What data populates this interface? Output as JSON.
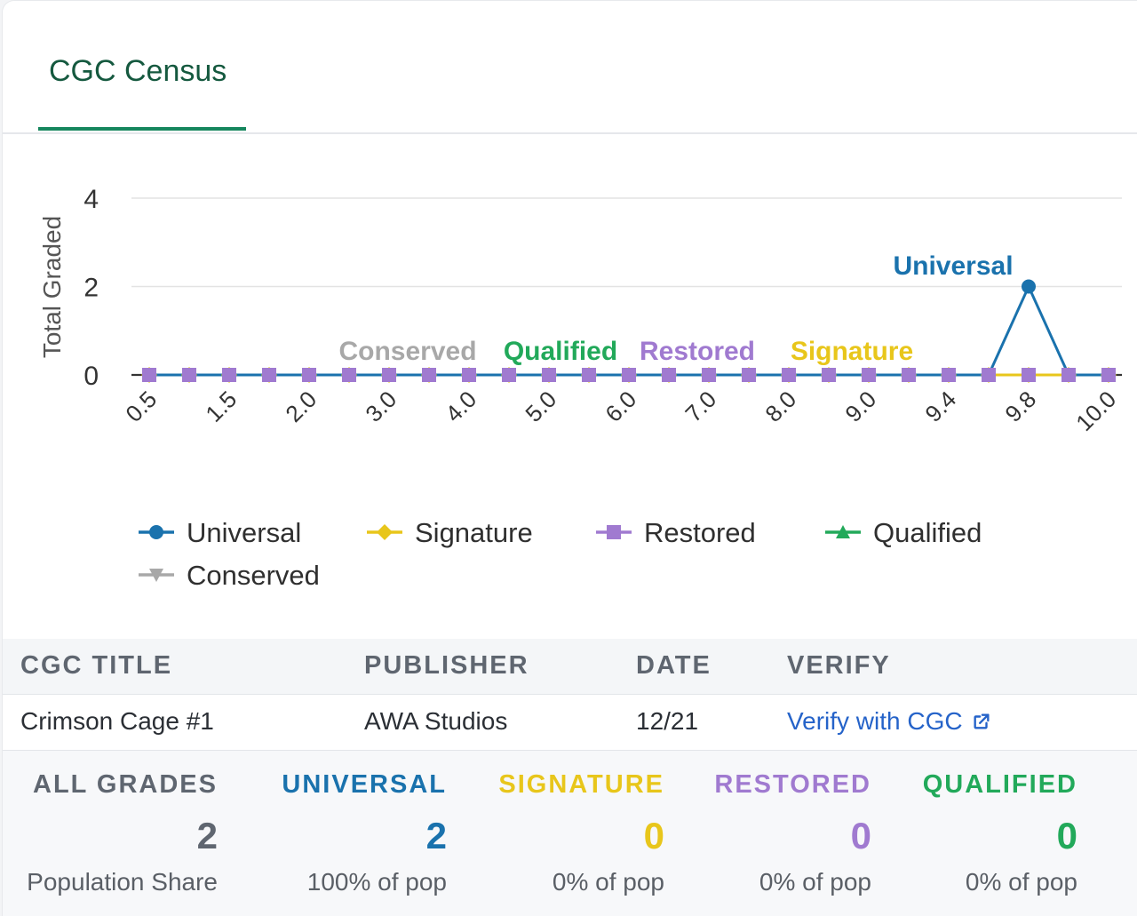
{
  "tabs": [
    {
      "label": "CGC Census"
    }
  ],
  "colors": {
    "universal": "#1a72ad",
    "signature": "#e8c61b",
    "restored": "#a07ad0",
    "qualified": "#22a95a",
    "conserved": "#a8a8a8",
    "neutral": "#5f6670"
  },
  "chart_data": {
    "type": "line",
    "ylabel": "Total Graded",
    "ylim": [
      0,
      4
    ],
    "yticks": [
      0,
      2,
      4
    ],
    "x_grades": [
      "0.5",
      "1.0",
      "1.5",
      "1.8",
      "2.0",
      "2.5",
      "3.0",
      "3.5",
      "4.0",
      "4.5",
      "5.0",
      "5.5",
      "6.0",
      "6.5",
      "7.0",
      "7.5",
      "8.0",
      "8.5",
      "9.0",
      "9.2",
      "9.4",
      "9.6",
      "9.8",
      "9.9",
      "10.0"
    ],
    "xtick_labels": [
      "0.5",
      "1.5",
      "2.0",
      "3.0",
      "4.0",
      "5.0",
      "6.0",
      "7.0",
      "8.0",
      "9.0",
      "9.4",
      "9.8",
      "10.0"
    ],
    "series": [
      {
        "name": "Universal",
        "color": "#1a72ad",
        "marker": "circle",
        "values": [
          0,
          0,
          0,
          0,
          0,
          0,
          0,
          0,
          0,
          0,
          0,
          0,
          0,
          0,
          0,
          0,
          0,
          0,
          0,
          0,
          0,
          0,
          2,
          0,
          0
        ]
      },
      {
        "name": "Signature",
        "color": "#e8c61b",
        "marker": "diamond",
        "values": [
          0,
          0,
          0,
          0,
          0,
          0,
          0,
          0,
          0,
          0,
          0,
          0,
          0,
          0,
          0,
          0,
          0,
          0,
          0,
          0,
          0,
          0,
          0,
          0,
          0
        ]
      },
      {
        "name": "Restored",
        "color": "#a07ad0",
        "marker": "square",
        "values": [
          0,
          0,
          0,
          0,
          0,
          0,
          0,
          0,
          0,
          0,
          0,
          0,
          0,
          0,
          0,
          0,
          0,
          0,
          0,
          0,
          0,
          0,
          0,
          0,
          0
        ]
      },
      {
        "name": "Qualified",
        "color": "#22a95a",
        "marker": "triangle",
        "values": [
          0,
          0,
          0,
          0,
          0,
          0,
          0,
          0,
          0,
          0,
          0,
          0,
          0,
          0,
          0,
          0,
          0,
          0,
          0,
          0,
          0,
          0,
          0,
          0,
          0
        ]
      },
      {
        "name": "Conserved",
        "color": "#a8a8a8",
        "marker": "triangle-down",
        "values": [
          0,
          0,
          0,
          0,
          0,
          0,
          0,
          0,
          0,
          0,
          0,
          0,
          0,
          0,
          0,
          0,
          0,
          0,
          0,
          0,
          0,
          0,
          0,
          0,
          0
        ]
      }
    ],
    "annotations": [
      {
        "text": "Conserved",
        "color": "#a8a8a8"
      },
      {
        "text": "Qualified",
        "color": "#22a95a"
      },
      {
        "text": "Restored",
        "color": "#a07ad0"
      },
      {
        "text": "Signature",
        "color": "#e8c61b"
      },
      {
        "text": "Universal",
        "color": "#1a72ad"
      }
    ],
    "legend": [
      "Universal",
      "Signature",
      "Restored",
      "Qualified",
      "Conserved"
    ],
    "legend_position": "bottom",
    "grid": true
  },
  "table": {
    "headers": [
      "CGC TITLE",
      "PUBLISHER",
      "DATE",
      "VERIFY"
    ],
    "row": {
      "title": "Crimson Cage #1",
      "publisher": "AWA Studios",
      "date": "12/21",
      "verify": "Verify with CGC"
    }
  },
  "summary": [
    {
      "label": "ALL GRADES",
      "value": "2",
      "sub": "Population Share",
      "color": "#5f6670"
    },
    {
      "label": "UNIVERSAL",
      "value": "2",
      "sub": "100% of pop",
      "color": "#1a72ad"
    },
    {
      "label": "SIGNATURE",
      "value": "0",
      "sub": "0% of pop",
      "color": "#e8c61b"
    },
    {
      "label": "RESTORED",
      "value": "0",
      "sub": "0% of pop",
      "color": "#a07ad0"
    },
    {
      "label": "QUALIFIED",
      "value": "0",
      "sub": "0% of pop",
      "color": "#22a95a"
    }
  ]
}
